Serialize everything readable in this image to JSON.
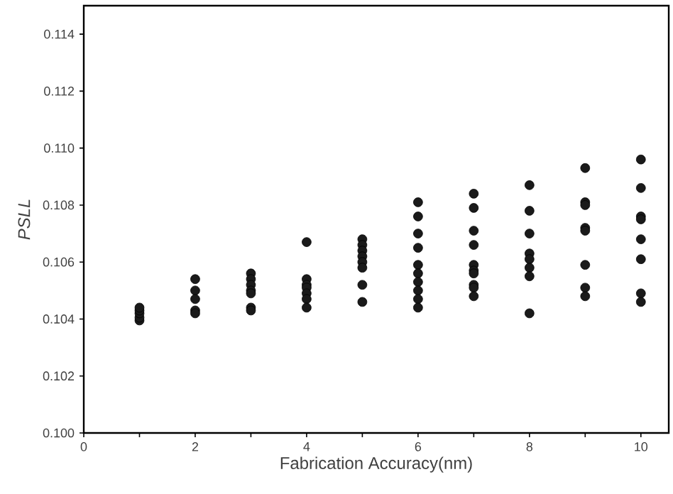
{
  "chart_data": {
    "type": "scatter",
    "xlabel": "Fabrication Accuracy(nm)",
    "ylabel": "*PSLL*",
    "xlim": [
      0,
      10.5
    ],
    "ylim": [
      0.1,
      0.115
    ],
    "xticks": [
      0,
      2,
      4,
      6,
      8,
      10
    ],
    "yticks": [
      {
        "value": 0.1,
        "label": "0.100"
      },
      {
        "value": 0.102,
        "label": "0.102"
      },
      {
        "value": 0.104,
        "label": "0.104"
      },
      {
        "value": 0.106,
        "label": "0.106"
      },
      {
        "value": 0.108,
        "label": "0.108"
      },
      {
        "value": 0.11,
        "label": "0.110"
      },
      {
        "value": 0.112,
        "label": "0.112"
      },
      {
        "value": 0.114,
        "label": "0.114"
      }
    ],
    "marker": "circle",
    "grid": false,
    "series": [
      {
        "color": "#1a1a1a",
        "x": [
          1,
          1,
          1,
          1,
          1,
          2,
          2,
          2,
          2,
          2,
          3,
          3,
          3,
          3,
          3,
          3,
          3,
          4,
          4,
          4,
          4,
          4,
          4,
          4,
          5,
          5,
          5,
          5,
          5,
          5,
          5,
          5,
          6,
          6,
          6,
          6,
          6,
          6,
          6,
          6,
          6,
          6,
          7,
          7,
          7,
          7,
          7,
          7,
          7,
          7,
          7,
          7,
          8,
          8,
          8,
          8,
          8,
          8,
          8,
          8,
          9,
          9,
          9,
          9,
          9,
          9,
          9,
          9,
          10,
          10,
          10,
          10,
          10,
          10,
          10,
          10
        ],
        "values": [
          0.10395,
          0.10405,
          0.1042,
          0.1043,
          0.1044,
          0.1054,
          0.105,
          0.1047,
          0.1043,
          0.1042,
          0.1056,
          0.1054,
          0.1052,
          0.105,
          0.1049,
          0.1044,
          0.1043,
          0.1067,
          0.1054,
          0.1052,
          0.1051,
          0.1049,
          0.1047,
          0.1044,
          0.1068,
          0.1066,
          0.1064,
          0.1062,
          0.106,
          0.1058,
          0.1052,
          0.1046,
          0.1081,
          0.1076,
          0.107,
          0.1065,
          0.1059,
          0.1056,
          0.1053,
          0.105,
          0.1047,
          0.1044,
          0.1084,
          0.1079,
          0.1071,
          0.1066,
          0.1059,
          0.1057,
          0.1056,
          0.1052,
          0.1051,
          0.1048,
          0.1087,
          0.1078,
          0.107,
          0.1063,
          0.1061,
          0.1058,
          0.1055,
          0.1042,
          0.1093,
          0.1081,
          0.108,
          0.1072,
          0.1071,
          0.1059,
          0.1051,
          0.1048,
          0.1096,
          0.1086,
          0.1076,
          0.1075,
          0.1068,
          0.1061,
          0.1049,
          0.1046
        ]
      }
    ]
  }
}
